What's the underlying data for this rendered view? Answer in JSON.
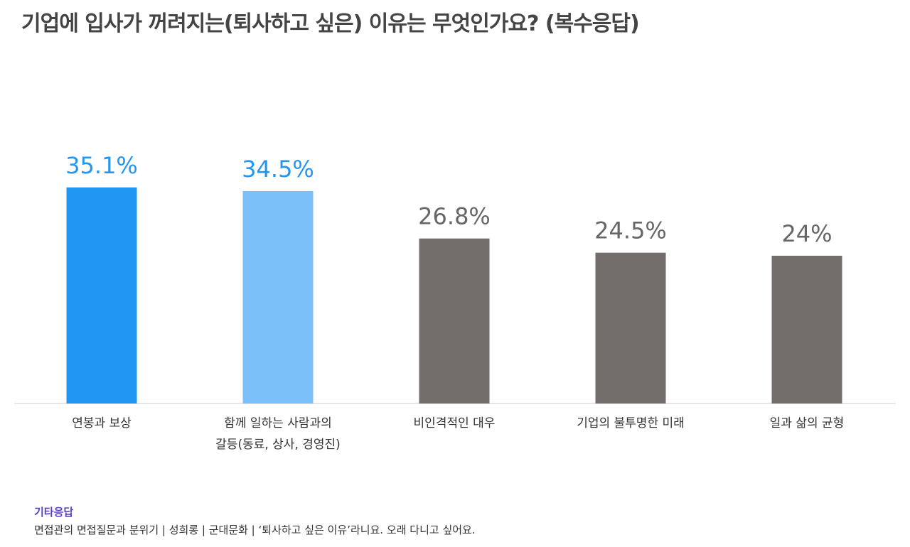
{
  "chart_data": {
    "type": "bar",
    "title": "기업에 입사가 꺼려지는(퇴사하고 싶은) 이유는 무엇인가요? (복수응답)",
    "categories": [
      [
        "연봉과 보상"
      ],
      [
        "함께 일하는 사람과의",
        "갈등(동료, 상사, 경영진)"
      ],
      [
        "비인격적인 대우"
      ],
      [
        "기업의 불투명한 미래"
      ],
      [
        "일과 삶의 균형"
      ]
    ],
    "values": [
      35.1,
      34.5,
      26.8,
      24.5,
      24
    ],
    "value_labels": [
      "35.1%",
      "34.5%",
      "26.8%",
      "24.5%",
      "24%"
    ],
    "unit": "%",
    "ylim": [
      0,
      39
    ],
    "grid": false,
    "colors": {
      "bars": [
        "#2196f3",
        "#7bbff9",
        "#736e6c",
        "#736e6c",
        "#736e6c"
      ],
      "labels": [
        "#2196f3",
        "#2196f3",
        "#666666",
        "#666666",
        "#666666"
      ],
      "axis": "#cccccc",
      "category_text": "#333333"
    }
  },
  "footer": {
    "heading": "기타응답",
    "text": "면접관의 면접질문과 분위기 | 성희롱 |  군대문화  |  ‘퇴사하고 싶은 이유’라니요. 오래 다니고 싶어요."
  }
}
